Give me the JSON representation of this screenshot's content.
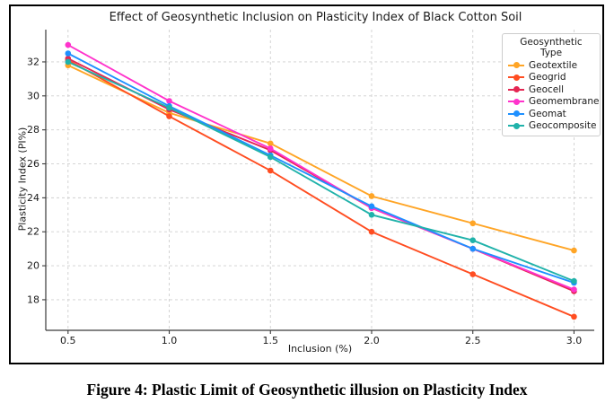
{
  "figure": {
    "caption": "Figure 4: Plastic Limit of Geosynthetic illusion on Plasticity Index"
  },
  "chart_data": {
    "type": "line",
    "title": "Effect of Geosynthetic Inclusion on Plasticity Index of Black Cotton Soil",
    "xlabel": "Inclusion (%)",
    "ylabel": "Plasticity Index (PI%)",
    "x": [
      0.5,
      1.0,
      1.5,
      2.0,
      2.5,
      3.0
    ],
    "x_tick_labels": [
      "0.5",
      "1.0",
      "1.5",
      "2.0",
      "2.5",
      "3.0"
    ],
    "y_ticks": [
      18,
      20,
      22,
      24,
      26,
      28,
      30,
      32
    ],
    "xlim": [
      0.39,
      3.1
    ],
    "ylim": [
      16.2,
      33.9
    ],
    "grid": true,
    "grid_color": "#cfcfcf",
    "spine_color": "#3a3a3a",
    "legend_title": "Geosynthetic Type",
    "legend_position": "upper right",
    "series": [
      {
        "name": "Geotextile",
        "color": "#FFA526",
        "values": [
          31.8,
          29.0,
          27.2,
          24.1,
          22.5,
          20.9
        ]
      },
      {
        "name": "Geogrid",
        "color": "#FF4D21",
        "values": [
          32.1,
          28.8,
          25.6,
          22.0,
          19.5,
          17.0
        ]
      },
      {
        "name": "Geocell",
        "color": "#E42652",
        "values": [
          32.2,
          29.2,
          26.8,
          23.4,
          21.0,
          18.5
        ]
      },
      {
        "name": "Geomembrane",
        "color": "#FF33CC",
        "values": [
          33.0,
          29.7,
          26.9,
          23.4,
          21.0,
          18.6
        ]
      },
      {
        "name": "Geomat",
        "color": "#1E90FF",
        "values": [
          32.5,
          29.4,
          26.5,
          23.5,
          21.0,
          19.0
        ]
      },
      {
        "name": "Geocomposite",
        "color": "#20B2AA",
        "values": [
          32.0,
          29.3,
          26.4,
          23.0,
          21.5,
          19.1
        ]
      }
    ]
  }
}
